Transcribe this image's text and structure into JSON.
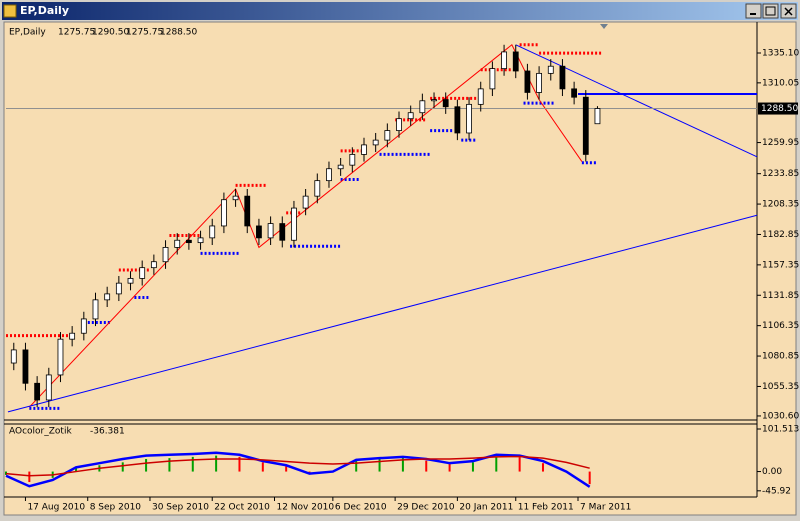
{
  "window_title": "EP,Daily",
  "chart_data": [
    {
      "type": "candlestick",
      "title": "EP,Daily",
      "ohlc_labels": [
        "1275.75",
        "1290.50",
        "1275.75",
        "1288.50"
      ],
      "last_price_label": "1288.50",
      "x": [
        2,
        5,
        8,
        11,
        14,
        17,
        20,
        23,
        26,
        29,
        32,
        35,
        38,
        41,
        44,
        47,
        50,
        53,
        56,
        59,
        62,
        65,
        68,
        71,
        74,
        77,
        80,
        83,
        86,
        89,
        92,
        95,
        98,
        101,
        104,
        107,
        110,
        113,
        116,
        119,
        122,
        125,
        128,
        131,
        134,
        137,
        140,
        143,
        146,
        149,
        152
      ],
      "open": [
        1075,
        1086,
        1058,
        1044,
        1065,
        1095,
        1100,
        1112,
        1128,
        1133,
        1142,
        1146,
        1155,
        1160,
        1172,
        1178,
        1176,
        1180,
        1190,
        1212,
        1215,
        1190,
        1180,
        1192,
        1178,
        1205,
        1215,
        1228,
        1238,
        1241,
        1250,
        1258,
        1262,
        1270,
        1280,
        1285,
        1295,
        1296,
        1290,
        1268,
        1292,
        1305,
        1322,
        1336,
        1320,
        1302,
        1318,
        1324,
        1305,
        1298,
        1275.75
      ],
      "high": [
        1092,
        1092,
        1064,
        1071,
        1101,
        1106,
        1118,
        1134,
        1139,
        1148,
        1152,
        1161,
        1166,
        1178,
        1184,
        1184,
        1186,
        1196,
        1218,
        1221,
        1221,
        1196,
        1198,
        1198,
        1211,
        1221,
        1234,
        1244,
        1247,
        1256,
        1264,
        1268,
        1276,
        1286,
        1291,
        1301,
        1302,
        1302,
        1296,
        1298,
        1311,
        1328,
        1342,
        1342,
        1326,
        1324,
        1330,
        1330,
        1311,
        1304,
        1290.5
      ],
      "low": [
        1069,
        1052,
        1038,
        1038,
        1059,
        1089,
        1094,
        1106,
        1122,
        1127,
        1136,
        1140,
        1149,
        1154,
        1166,
        1170,
        1170,
        1174,
        1184,
        1206,
        1184,
        1174,
        1174,
        1172,
        1172,
        1199,
        1209,
        1222,
        1232,
        1235,
        1244,
        1252,
        1256,
        1264,
        1274,
        1279,
        1289,
        1284,
        1262,
        1262,
        1286,
        1299,
        1316,
        1314,
        1296,
        1296,
        1312,
        1299,
        1292,
        1244,
        1275.75
      ],
      "close": [
        1086,
        1058,
        1044,
        1065,
        1095,
        1100,
        1112,
        1128,
        1133,
        1142,
        1146,
        1155,
        1160,
        1172,
        1178,
        1176,
        1180,
        1190,
        1212,
        1215,
        1190,
        1180,
        1192,
        1178,
        1205,
        1215,
        1228,
        1238,
        1241,
        1250,
        1258,
        1262,
        1270,
        1280,
        1285,
        1295,
        1296,
        1290,
        1268,
        1292,
        1305,
        1322,
        1336,
        1320,
        1302,
        1318,
        1324,
        1305,
        1298,
        1250,
        1288.5
      ],
      "xlim": [
        0,
        193
      ],
      "xticks": [
        {
          "value": 5,
          "label": "17 Aug 2010"
        },
        {
          "value": 21,
          "label": "8 Sep 2010"
        },
        {
          "value": 37,
          "label": "30 Sep 2010"
        },
        {
          "value": 53,
          "label": "22 Oct 2010"
        },
        {
          "value": 69,
          "label": "12 Nov 2010"
        },
        {
          "value": 84,
          "label": "6 Dec 2010"
        },
        {
          "value": 100,
          "label": "29 Dec 2010"
        },
        {
          "value": 116,
          "label": "20 Jan 2011"
        },
        {
          "value": 131,
          "label": "11 Feb 2011"
        },
        {
          "value": 147,
          "label": "7 Mar 2011"
        }
      ],
      "ylim": [
        1027.2,
        1361.1
      ],
      "yticks": [
        {
          "value": 1335.1,
          "label": "1335.10"
        },
        {
          "value": 1310.05,
          "label": "1310.05"
        },
        {
          "value": 1259.95,
          "label": "1259.95"
        },
        {
          "value": 1233.85,
          "label": "1233.85"
        },
        {
          "value": 1208.35,
          "label": "1208.35"
        },
        {
          "value": 1182.85,
          "label": "1182.85"
        },
        {
          "value": 1157.35,
          "label": "1157.35"
        },
        {
          "value": 1131.85,
          "label": "1131.85"
        },
        {
          "value": 1106.35,
          "label": "1106.35"
        },
        {
          "value": 1080.85,
          "label": "1080.85"
        },
        {
          "value": 1055.35,
          "label": "1055.35"
        },
        {
          "value": 1030.6,
          "label": "1030.60"
        }
      ],
      "candle_color": "#000000",
      "up_fill": "#ffffff",
      "down_fill": "#000000",
      "trendlines": {
        "color": "#0000ff",
        "lines": [
          {
            "x": [
              0.5,
              193
            ],
            "y": [
              1034,
              1199
            ]
          },
          {
            "x": [
              131,
              193
            ],
            "y": [
              1342,
              1248
            ]
          },
          {
            "x": [
              147,
              193
            ],
            "y": [
              1300.7,
              1300.7
            ]
          }
        ]
      },
      "zigzag": {
        "color": "#ff0000",
        "x": [
          6,
          59,
          65,
          130,
          137,
          148
        ],
        "y": [
          1038,
          1221,
          1172,
          1342,
          1296,
          1244
        ]
      },
      "resistance": {
        "color": "#ff0000",
        "from": [
          0,
          29,
          42,
          59,
          72,
          86,
          100,
          109,
          122,
          132,
          137
        ],
        "to": [
          16,
          37,
          50,
          67,
          76,
          92,
          108,
          121,
          130,
          137,
          153
        ],
        "values": [
          1098,
          1153,
          1182,
          1224,
          1201,
          1253,
          1279,
          1297,
          1321,
          1342,
          1335
        ]
      },
      "support": {
        "color": "#0000ff",
        "from": [
          6,
          20,
          33,
          50,
          73,
          86,
          96,
          109,
          117,
          133,
          148
        ],
        "to": [
          14,
          27,
          37,
          60,
          86,
          91,
          109,
          115,
          121,
          141,
          152
        ],
        "values": [
          1037,
          1109,
          1130,
          1167,
          1173,
          1229,
          1250,
          1270,
          1262,
          1293,
          1243
        ]
      }
    },
    {
      "type": "indicator",
      "title": "AOcolor_Zotik",
      "value_label": "-36.381",
      "x": [
        0,
        6,
        12,
        18,
        24,
        30,
        36,
        42,
        48,
        54,
        60,
        66,
        72,
        78,
        84,
        90,
        96,
        102,
        108,
        114,
        120,
        126,
        132,
        138,
        144,
        150
      ],
      "series": [
        {
          "color": "#0000ff",
          "values": [
            -10,
            -35,
            -20,
            10,
            20,
            30,
            38,
            40,
            42,
            45,
            40,
            25,
            15,
            -5,
            0,
            28,
            32,
            35,
            30,
            20,
            25,
            40,
            38,
            25,
            0,
            -36.381
          ]
        },
        {
          "color": "#cc0000",
          "values": [
            -5,
            -10,
            -8,
            0,
            8,
            14,
            20,
            25,
            28,
            30,
            30,
            28,
            24,
            20,
            18,
            20,
            24,
            28,
            30,
            30,
            32,
            35,
            36,
            32,
            22,
            8
          ]
        }
      ],
      "histogram": {
        "up_color": "#00a000",
        "down_color": "#ff0000",
        "values": [
          -8,
          -25,
          -15,
          8,
          15,
          22,
          30,
          32,
          35,
          38,
          35,
          22,
          12,
          -4,
          2,
          25,
          30,
          32,
          26,
          18,
          22,
          35,
          34,
          20,
          -2,
          -30
        ]
      },
      "xlim": [
        0,
        193
      ],
      "ylim": [
        -55.9,
        101.513
      ],
      "yticks": [
        {
          "value": 101.513,
          "label": "101.513"
        },
        {
          "value": 0,
          "label": "0.00"
        },
        {
          "value": -45.92,
          "label": "-45.92"
        }
      ]
    }
  ]
}
